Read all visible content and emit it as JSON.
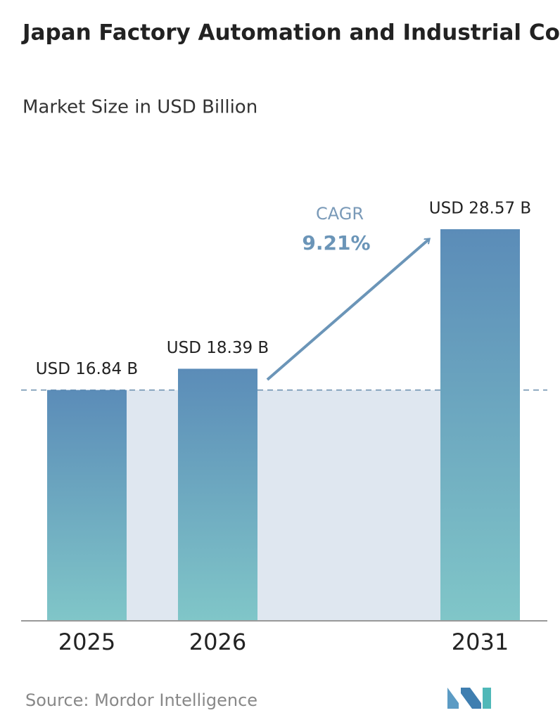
{
  "chart_data": {
    "type": "bar",
    "title": "Japan Factory Automation and Industrial Controls Market",
    "subtitle": "Market Size in USD Billion",
    "categories": [
      "2025",
      "2026",
      "2031"
    ],
    "values": [
      16.84,
      18.39,
      28.57
    ],
    "value_labels": [
      "USD 16.84 B",
      "USD 18.39 B",
      "USD 28.57 B"
    ],
    "annotation": {
      "label": "CAGR",
      "value": "9.21%"
    },
    "source": "Source: Mordor Intelligence"
  }
}
